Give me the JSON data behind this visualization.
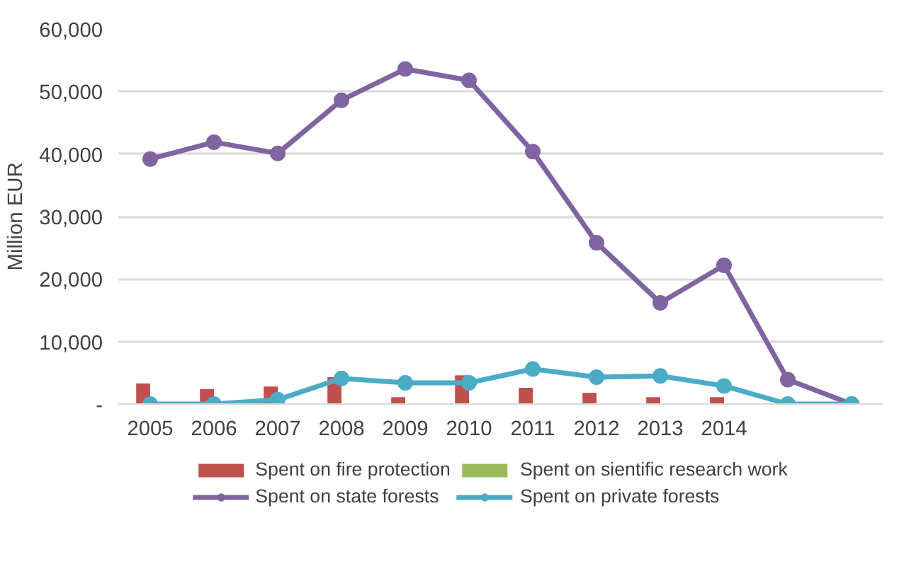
{
  "chart_data": {
    "type": "bar",
    "ylabel": "Million EUR",
    "categories": [
      "2005",
      "2006",
      "2007",
      "2008",
      "2009",
      "2010",
      "2011",
      "2012",
      "2013",
      "2014",
      null,
      null
    ],
    "ylim": [
      0,
      60000
    ],
    "yticks": [
      {
        "value": 0,
        "label": "-"
      },
      {
        "value": 10000,
        "label": "10,000"
      },
      {
        "value": 20000,
        "label": "20,000"
      },
      {
        "value": 30000,
        "label": "30,000"
      },
      {
        "value": 40000,
        "label": "40,000"
      },
      {
        "value": 50000,
        "label": "50,000"
      },
      {
        "value": 60000,
        "label": "60,000"
      }
    ],
    "grid": "y",
    "legend": "bottom",
    "marker": "circle",
    "series": [
      {
        "name": "Spent on fire protection",
        "color": "#c0504d",
        "values": [
          3300,
          2400,
          2800,
          4300,
          1100,
          4600,
          2600,
          1800,
          1100,
          1100,
          null,
          null
        ]
      },
      {
        "name": "Spent on sientific research work",
        "color": "#9bbb59",
        "values": [
          null,
          null,
          null,
          null,
          null,
          null,
          null,
          null,
          null,
          null,
          null,
          null
        ]
      },
      {
        "name": "Spent on state forests",
        "type": "line",
        "color": "#8064a2",
        "values": [
          39200,
          41900,
          40100,
          48600,
          53600,
          51800,
          40400,
          25800,
          16200,
          22200,
          3900,
          0
        ]
      },
      {
        "name": "Spent on private forests",
        "type": "line",
        "color": "#4bacc6",
        "values": [
          0,
          0,
          700,
          4100,
          3400,
          3400,
          5600,
          4300,
          4500,
          2900,
          0,
          0
        ]
      }
    ]
  }
}
